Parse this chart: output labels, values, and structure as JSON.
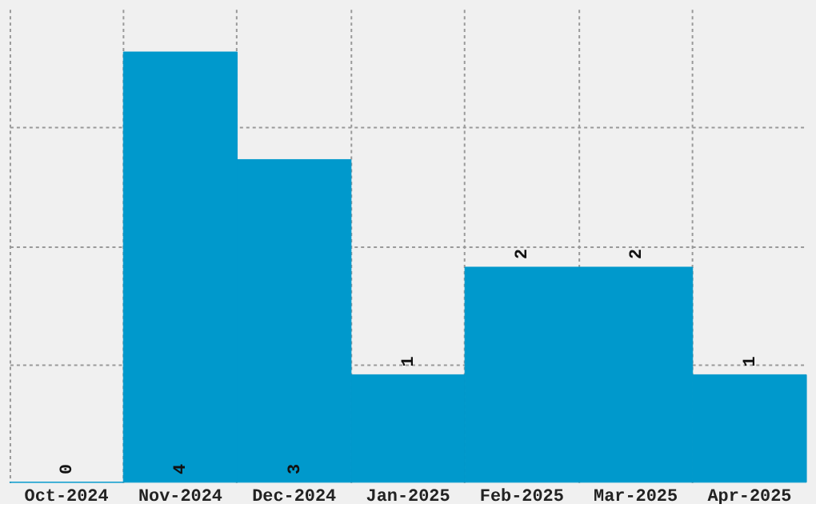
{
  "chart_data": {
    "type": "bar",
    "categories": [
      "Oct-2024",
      "Nov-2024",
      "Dec-2024",
      "Jan-2025",
      "Feb-2025",
      "Mar-2025",
      "Apr-2025"
    ],
    "values": [
      0,
      4,
      3,
      1,
      2,
      2,
      1
    ],
    "color": "#0099cc",
    "ylim": [
      0,
      4.4
    ],
    "yticks": [
      {
        "value": 1.1,
        "label": null
      },
      {
        "value": 2.2,
        "label": null
      },
      {
        "value": 3.3,
        "label": null
      }
    ],
    "tick_labels": "x",
    "grid": true,
    "data_labels": true
  }
}
